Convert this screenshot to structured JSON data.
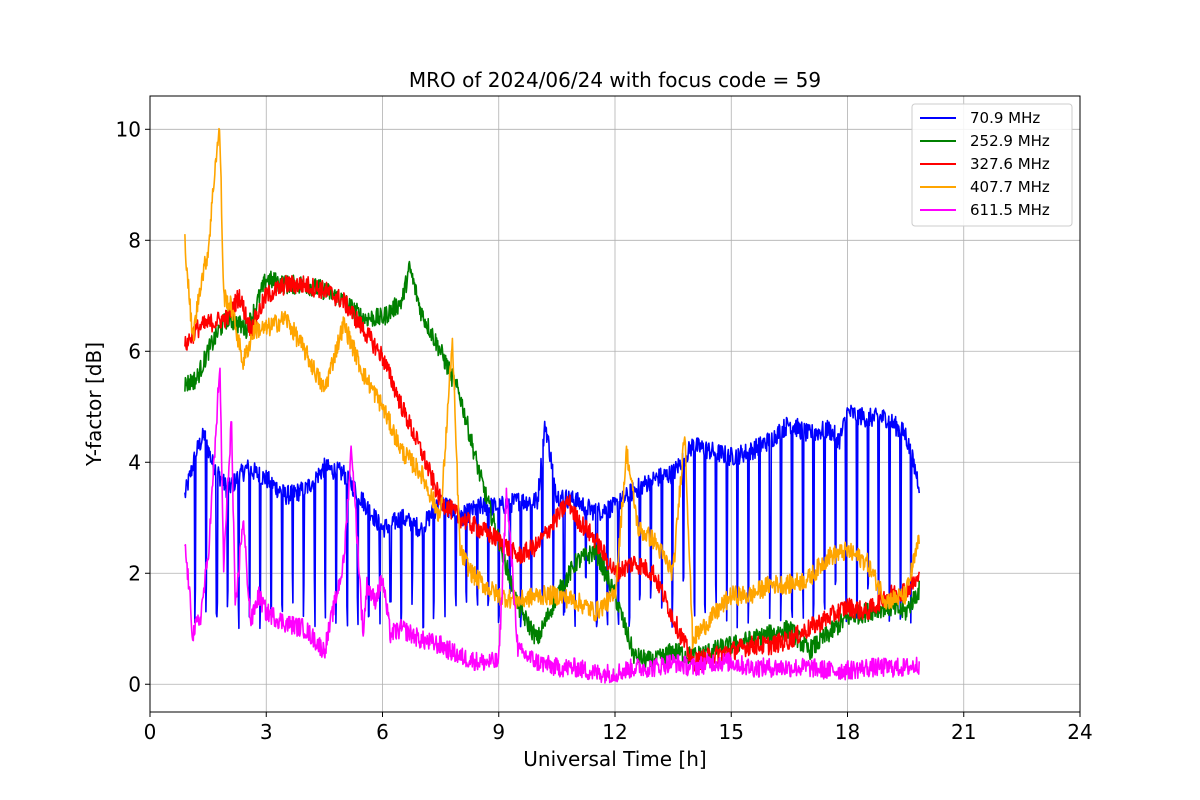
{
  "chart_data": {
    "type": "line",
    "title": "MRO of 2024/06/24 with focus code = 59",
    "xlabel": "Universal Time [h]",
    "ylabel": "Y-factor [dB]",
    "xlim": [
      0,
      24
    ],
    "ylim": [
      -0.5,
      10.6
    ],
    "xticks": [
      0,
      3,
      6,
      9,
      12,
      15,
      18,
      21,
      24
    ],
    "yticks": [
      0,
      2,
      4,
      6,
      8,
      10
    ],
    "grid": true,
    "legend_position": "top-right",
    "series": [
      {
        "name": " 70.9 MHz",
        "color": "#0000ff",
        "dip_period": 0.28,
        "dip_low": 1.5,
        "x": [
          0.9,
          1.2,
          1.4,
          1.6,
          2.0,
          2.5,
          3.0,
          3.5,
          4.0,
          4.5,
          5.0,
          5.5,
          6.0,
          6.5,
          7.0,
          7.5,
          8.0,
          8.5,
          9.0,
          9.5,
          10.0,
          10.2,
          10.5,
          11.0,
          11.5,
          12.0,
          12.5,
          13.0,
          13.5,
          14.0,
          14.5,
          15.0,
          15.5,
          16.0,
          16.5,
          17.0,
          17.5,
          17.8,
          18.0,
          18.5,
          19.0,
          19.5,
          19.85
        ],
        "y": [
          3.4,
          4.2,
          4.5,
          4.0,
          3.5,
          3.9,
          3.7,
          3.4,
          3.5,
          3.9,
          3.8,
          3.3,
          2.8,
          3.0,
          2.8,
          3.3,
          3.0,
          3.2,
          3.2,
          3.3,
          3.3,
          4.7,
          3.4,
          3.3,
          3.1,
          3.2,
          3.5,
          3.7,
          3.8,
          4.3,
          4.2,
          4.1,
          4.2,
          4.4,
          4.7,
          4.5,
          4.6,
          4.4,
          4.9,
          4.8,
          4.8,
          4.5,
          3.6
        ]
      },
      {
        "name": "252.9 MHz",
        "color": "#008000",
        "x": [
          0.9,
          1.2,
          1.5,
          1.8,
          2.0,
          2.5,
          3.0,
          3.5,
          4.0,
          4.5,
          5.0,
          5.5,
          6.0,
          6.5,
          6.7,
          7.0,
          7.5,
          8.0,
          8.5,
          9.0,
          9.5,
          10.0,
          10.5,
          11.0,
          11.5,
          12.0,
          12.5,
          13.0,
          13.5,
          14.0,
          14.5,
          15.0,
          15.5,
          16.0,
          16.5,
          17.0,
          17.5,
          18.0,
          18.5,
          19.0,
          19.5,
          19.85
        ],
        "y": [
          5.4,
          5.5,
          6.0,
          6.4,
          6.6,
          6.4,
          7.3,
          7.2,
          7.2,
          7.1,
          6.9,
          6.6,
          6.6,
          6.9,
          7.5,
          6.7,
          6.0,
          5.2,
          3.8,
          2.6,
          1.4,
          0.8,
          1.6,
          2.2,
          2.4,
          1.6,
          0.5,
          0.4,
          0.6,
          0.5,
          0.6,
          0.7,
          0.8,
          0.9,
          1.0,
          0.6,
          0.9,
          1.2,
          1.3,
          1.4,
          1.3,
          1.7
        ]
      },
      {
        "name": "327.6 MHz",
        "color": "#ff0000",
        "x": [
          0.9,
          1.2,
          1.5,
          2.0,
          2.3,
          2.6,
          3.0,
          3.5,
          4.0,
          4.5,
          5.0,
          5.5,
          6.0,
          6.5,
          7.0,
          7.5,
          8.0,
          8.5,
          9.0,
          9.5,
          10.0,
          10.5,
          10.8,
          11.0,
          11.5,
          12.0,
          12.5,
          13.0,
          13.5,
          14.0,
          14.5,
          15.0,
          15.5,
          16.0,
          16.5,
          17.0,
          17.5,
          18.0,
          18.5,
          19.0,
          19.5,
          19.85
        ],
        "y": [
          6.1,
          6.4,
          6.5,
          6.6,
          7.0,
          6.4,
          7.0,
          7.2,
          7.2,
          7.1,
          6.9,
          6.4,
          5.9,
          5.0,
          4.2,
          3.3,
          3.0,
          2.8,
          2.6,
          2.3,
          2.5,
          3.0,
          3.3,
          3.0,
          2.6,
          2.0,
          2.2,
          2.0,
          1.2,
          0.4,
          0.5,
          0.6,
          0.7,
          0.7,
          0.8,
          1.0,
          1.2,
          1.4,
          1.3,
          1.6,
          1.7,
          1.9
        ]
      },
      {
        "name": "407.7 MHz",
        "color": "#ffa500",
        "x": [
          0.9,
          1.1,
          1.3,
          1.5,
          1.7,
          1.8,
          1.9,
          2.1,
          2.4,
          2.7,
          3.0,
          3.5,
          4.0,
          4.5,
          5.0,
          5.5,
          6.0,
          6.5,
          7.0,
          7.5,
          7.8,
          8.0,
          8.3,
          8.6,
          9.0,
          9.5,
          10.0,
          10.5,
          11.0,
          11.5,
          12.0,
          12.3,
          12.6,
          13.0,
          13.5,
          13.8,
          14.0,
          14.5,
          15.0,
          15.5,
          16.0,
          16.5,
          17.0,
          17.5,
          18.0,
          18.5,
          19.0,
          19.5,
          19.85
        ],
        "y": [
          8.0,
          6.2,
          7.2,
          7.8,
          9.5,
          10.0,
          7.0,
          6.8,
          5.8,
          6.4,
          6.4,
          6.6,
          6.0,
          5.3,
          6.5,
          5.6,
          5.0,
          4.2,
          3.8,
          3.0,
          6.2,
          2.4,
          2.0,
          1.8,
          1.6,
          1.5,
          1.6,
          1.6,
          1.5,
          1.3,
          1.6,
          4.2,
          2.8,
          2.6,
          2.0,
          4.6,
          0.8,
          1.2,
          1.6,
          1.6,
          1.8,
          1.8,
          1.9,
          2.3,
          2.4,
          2.2,
          1.5,
          1.6,
          2.6
        ]
      },
      {
        "name": "611.5 MHz",
        "color": "#ff00ff",
        "x": [
          0.9,
          1.0,
          1.1,
          1.3,
          1.5,
          1.7,
          1.8,
          1.9,
          2.1,
          2.2,
          2.4,
          2.6,
          2.8,
          3.0,
          3.5,
          4.0,
          4.5,
          5.0,
          5.2,
          5.5,
          5.6,
          5.8,
          6.0,
          6.2,
          6.5,
          7.0,
          7.5,
          8.0,
          8.5,
          9.0,
          9.2,
          9.5,
          10.0,
          10.5,
          11.0,
          11.5,
          12.0,
          12.5,
          13.0,
          13.5,
          14.0,
          14.5,
          15.0,
          15.5,
          16.0,
          16.5,
          17.0,
          17.5,
          18.0,
          18.5,
          19.0,
          19.5,
          19.85
        ],
        "y": [
          2.5,
          1.8,
          0.9,
          1.2,
          2.3,
          4.5,
          5.8,
          2.1,
          4.8,
          1.3,
          3.0,
          1.1,
          1.6,
          1.3,
          1.1,
          1.0,
          0.6,
          2.2,
          4.3,
          0.9,
          1.8,
          1.5,
          1.9,
          0.9,
          1.0,
          0.8,
          0.7,
          0.5,
          0.4,
          0.4,
          3.5,
          0.6,
          0.4,
          0.3,
          0.3,
          0.2,
          0.2,
          0.3,
          0.3,
          0.4,
          0.3,
          0.4,
          0.4,
          0.3,
          0.3,
          0.3,
          0.3,
          0.25,
          0.25,
          0.3,
          0.3,
          0.3,
          0.35
        ]
      }
    ]
  }
}
